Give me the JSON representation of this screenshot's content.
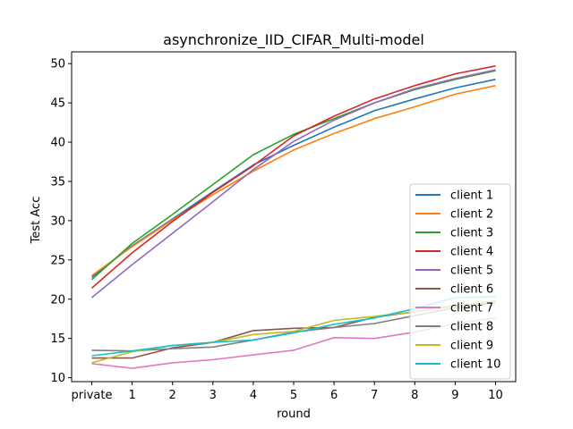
{
  "chart_data": {
    "type": "line",
    "title": "asynchronize_IID_CIFAR_Multi-model",
    "xlabel": "round",
    "ylabel": "Test Acc",
    "categories": [
      "private",
      "1",
      "2",
      "3",
      "4",
      "5",
      "6",
      "7",
      "8",
      "9",
      "10"
    ],
    "ylim": [
      9.5,
      51.5
    ],
    "yticks": [
      10,
      15,
      20,
      25,
      30,
      35,
      40,
      45,
      50
    ],
    "grid": false,
    "legend_position": "lower-right",
    "series": [
      {
        "name": "client 1",
        "color": "#1f77b4",
        "values": [
          22.8,
          26.8,
          30.2,
          33.7,
          37.1,
          39.6,
          41.9,
          44.0,
          45.5,
          46.9,
          48.0
        ]
      },
      {
        "name": "client 2",
        "color": "#ff7f0e",
        "values": [
          23.0,
          26.7,
          30.1,
          33.3,
          36.3,
          39.0,
          41.1,
          43.0,
          44.5,
          46.1,
          47.2
        ]
      },
      {
        "name": "client 3",
        "color": "#2ca02c",
        "values": [
          22.5,
          27.1,
          30.8,
          34.6,
          38.4,
          41.0,
          43.0,
          45.0,
          46.7,
          48.0,
          49.1
        ]
      },
      {
        "name": "client 4",
        "color": "#d62728",
        "values": [
          21.4,
          25.9,
          29.9,
          33.6,
          37.0,
          40.8,
          43.3,
          45.5,
          47.2,
          48.7,
          49.7
        ]
      },
      {
        "name": "client 5",
        "color": "#9467bd",
        "values": [
          20.2,
          24.4,
          28.4,
          32.4,
          36.5,
          40.1,
          42.8,
          45.0,
          46.8,
          48.1,
          49.2
        ]
      },
      {
        "name": "client 6",
        "color": "#8c564b",
        "values": [
          12.5,
          12.5,
          13.8,
          14.5,
          16.0,
          16.3,
          16.4,
          17.7,
          18.4,
          19.2,
          19.7
        ]
      },
      {
        "name": "client 7",
        "color": "#e377c2",
        "values": [
          11.8,
          11.2,
          11.9,
          12.3,
          12.9,
          13.5,
          15.1,
          15.0,
          15.8,
          16.9,
          17.6
        ]
      },
      {
        "name": "client 8",
        "color": "#7f7f7f",
        "values": [
          13.5,
          13.4,
          13.7,
          13.9,
          14.8,
          15.8,
          16.4,
          16.9,
          17.9,
          18.9,
          19.6
        ]
      },
      {
        "name": "client 9",
        "color": "#bcbd22",
        "values": [
          11.9,
          13.3,
          14.1,
          14.5,
          15.5,
          15.9,
          17.3,
          17.8,
          18.4,
          19.1,
          19.8
        ]
      },
      {
        "name": "client 10",
        "color": "#17becf",
        "values": [
          12.8,
          13.4,
          14.1,
          14.5,
          14.8,
          15.7,
          16.8,
          17.6,
          18.8,
          20.2,
          20.3
        ]
      }
    ]
  }
}
